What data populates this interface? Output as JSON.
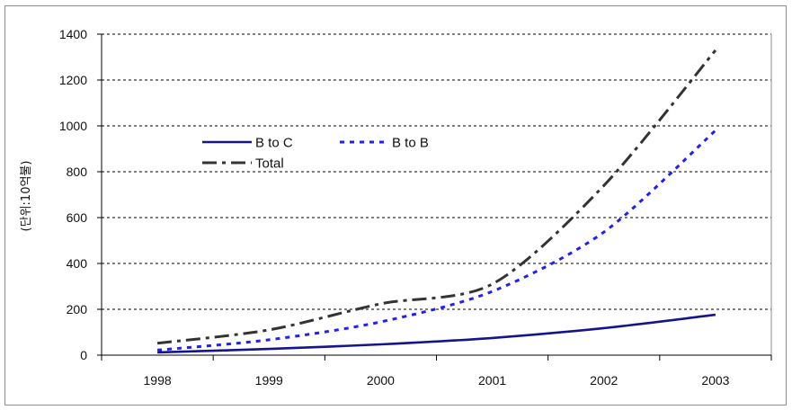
{
  "chart_data": {
    "type": "line",
    "categories": [
      "1998",
      "1999",
      "2000",
      "2001",
      "2002",
      "2003"
    ],
    "series": [
      {
        "name": "B to C",
        "values": [
          12,
          27,
          47,
          75,
          118,
          176
        ],
        "color": "#14148c",
        "dash": "solid"
      },
      {
        "name": "B to B",
        "values": [
          22,
          67,
          145,
          278,
          537,
          980
        ],
        "color": "#1e1eff",
        "dash": "dotted"
      },
      {
        "name": "Total",
        "values": [
          52,
          110,
          224,
          310,
          740,
          1330
        ],
        "color": "#333333",
        "dash": "dash-dot"
      }
    ],
    "ylabel": "(단위:10억불)",
    "ylim": [
      0,
      1400
    ],
    "yticks": [
      0,
      200,
      400,
      600,
      800,
      1000,
      1200,
      1400
    ],
    "grid": true,
    "legend": "inside-upper-left"
  }
}
